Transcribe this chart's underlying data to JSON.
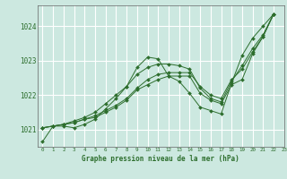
{
  "title": "Graphe pression niveau de la mer (hPa)",
  "bg_color": "#cce8e0",
  "grid_color": "#ffffff",
  "line_color": "#2d6e2d",
  "xlim": [
    -0.5,
    23
  ],
  "ylim": [
    1020.5,
    1024.6
  ],
  "yticks": [
    1021,
    1022,
    1023,
    1024
  ],
  "xticks": [
    0,
    1,
    2,
    3,
    4,
    5,
    6,
    7,
    8,
    9,
    10,
    11,
    12,
    13,
    14,
    15,
    16,
    17,
    18,
    19,
    20,
    21,
    22,
    23
  ],
  "series": [
    [
      1020.65,
      1021.1,
      1021.1,
      1021.05,
      1021.15,
      1021.3,
      1021.6,
      1021.9,
      1022.25,
      1022.8,
      1023.1,
      1023.05,
      1022.55,
      1022.4,
      1022.05,
      1021.65,
      1021.55,
      1021.45,
      1022.35,
      1023.15,
      1023.65,
      1024.0,
      1024.35
    ],
    [
      1021.05,
      1021.1,
      1021.15,
      1021.2,
      1021.3,
      1021.35,
      1021.5,
      1021.65,
      1021.85,
      1022.15,
      1022.3,
      1022.45,
      1022.55,
      1022.55,
      1022.55,
      1022.05,
      1021.85,
      1021.75,
      1022.3,
      1022.45,
      1023.2,
      1023.7,
      1024.35
    ],
    [
      1021.05,
      1021.1,
      1021.15,
      1021.2,
      1021.3,
      1021.4,
      1021.55,
      1021.7,
      1021.9,
      1022.2,
      1022.45,
      1022.6,
      1022.65,
      1022.65,
      1022.65,
      1022.25,
      1022.0,
      1021.9,
      1022.45,
      1022.75,
      1023.25,
      1023.7,
      1024.35
    ],
    [
      1021.05,
      1021.1,
      1021.15,
      1021.25,
      1021.35,
      1021.5,
      1021.75,
      1022.0,
      1022.25,
      1022.6,
      1022.8,
      1022.9,
      1022.9,
      1022.85,
      1022.75,
      1022.2,
      1021.9,
      1021.8,
      1022.4,
      1022.85,
      1023.35,
      1023.75,
      1024.35
    ]
  ]
}
